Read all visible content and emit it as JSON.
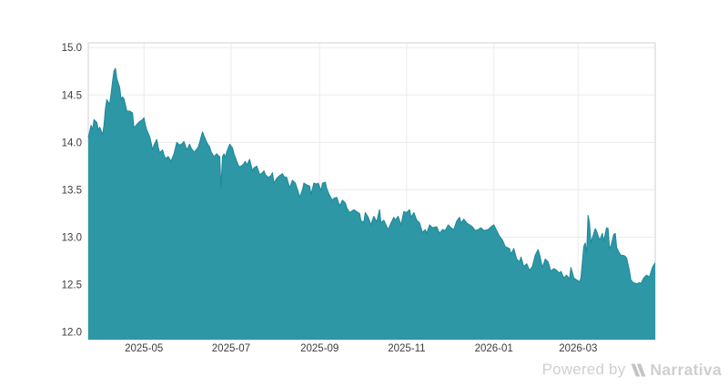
{
  "watermark": {
    "powered_by": "Powered by",
    "brand": "Narrativa"
  },
  "colors": {
    "area_fill": "#2e97a6",
    "area_line": "#1f8a9b",
    "grid": "#ebebeb",
    "plot_border": "#d9d9d9",
    "tick_text": "#3c3c3c",
    "watermark_text": "#cfcfcf",
    "watermark_logo": "#c4c4c4",
    "background": "#ffffff"
  },
  "chart_data": {
    "type": "area",
    "title": "",
    "xlabel": "",
    "ylabel": "",
    "grid": true,
    "legend": "none",
    "x_axis": {
      "range": [
        "2025-03-23",
        "2026-04-24"
      ],
      "ticks": [
        {
          "date": "2025-05-01",
          "label": "2025-05"
        },
        {
          "date": "2025-07-01",
          "label": "2025-07"
        },
        {
          "date": "2025-09-01",
          "label": "2025-09"
        },
        {
          "date": "2025-11-01",
          "label": "2025-11"
        },
        {
          "date": "2026-01-01",
          "label": "2026-01"
        },
        {
          "date": "2026-03-01",
          "label": "2026-03"
        }
      ]
    },
    "y_axis": {
      "range": [
        11.92,
        15.05
      ],
      "ticks": [
        {
          "value": 12.0,
          "label": "12.0"
        },
        {
          "value": 12.5,
          "label": "12.5"
        },
        {
          "value": 13.0,
          "label": "13.0"
        },
        {
          "value": 13.5,
          "label": "13.5"
        },
        {
          "value": 14.0,
          "label": "14.0"
        },
        {
          "value": 14.5,
          "label": "14.5"
        },
        {
          "value": 15.0,
          "label": "15.0"
        }
      ]
    },
    "series": [
      {
        "name": "value",
        "points": [
          [
            "2025-03-23",
            14.05
          ],
          [
            "2025-03-25",
            14.18
          ],
          [
            "2025-03-26",
            14.13
          ],
          [
            "2025-03-27",
            14.24
          ],
          [
            "2025-03-29",
            14.21
          ],
          [
            "2025-03-30",
            14.13
          ],
          [
            "2025-03-31",
            14.16
          ],
          [
            "2025-04-02",
            14.08
          ],
          [
            "2025-04-03",
            14.18
          ],
          [
            "2025-04-04",
            14.35
          ],
          [
            "2025-04-05",
            14.45
          ],
          [
            "2025-04-07",
            14.4
          ],
          [
            "2025-04-08",
            14.51
          ],
          [
            "2025-04-09",
            14.64
          ],
          [
            "2025-04-10",
            14.75
          ],
          [
            "2025-04-11",
            14.78
          ],
          [
            "2025-04-12",
            14.67
          ],
          [
            "2025-04-14",
            14.58
          ],
          [
            "2025-04-15",
            14.45
          ],
          [
            "2025-04-16",
            14.48
          ],
          [
            "2025-04-17",
            14.46
          ],
          [
            "2025-04-19",
            14.33
          ],
          [
            "2025-04-20",
            14.33
          ],
          [
            "2025-04-21",
            14.33
          ],
          [
            "2025-04-23",
            14.31
          ],
          [
            "2025-04-24",
            14.15
          ],
          [
            "2025-04-26",
            14.19
          ],
          [
            "2025-04-28",
            14.22
          ],
          [
            "2025-04-30",
            14.24
          ],
          [
            "2025-05-01",
            14.26
          ],
          [
            "2025-05-02",
            14.18
          ],
          [
            "2025-05-03",
            14.13
          ],
          [
            "2025-05-05",
            14.06
          ],
          [
            "2025-05-06",
            14.0
          ],
          [
            "2025-05-07",
            13.92
          ],
          [
            "2025-05-08",
            13.97
          ],
          [
            "2025-05-10",
            14.03
          ],
          [
            "2025-05-11",
            13.95
          ],
          [
            "2025-05-12",
            13.89
          ],
          [
            "2025-05-14",
            13.92
          ],
          [
            "2025-05-15",
            13.87
          ],
          [
            "2025-05-16",
            13.83
          ],
          [
            "2025-05-18",
            13.85
          ],
          [
            "2025-05-20",
            13.8
          ],
          [
            "2025-05-21",
            13.84
          ],
          [
            "2025-05-22",
            13.88
          ],
          [
            "2025-05-24",
            14.0
          ],
          [
            "2025-05-26",
            13.97
          ],
          [
            "2025-05-28",
            13.99
          ],
          [
            "2025-05-29",
            14.01
          ],
          [
            "2025-05-31",
            13.92
          ],
          [
            "2025-06-02",
            13.98
          ],
          [
            "2025-06-03",
            13.94
          ],
          [
            "2025-06-05",
            13.9
          ],
          [
            "2025-06-06",
            13.91
          ],
          [
            "2025-06-08",
            13.95
          ],
          [
            "2025-06-09",
            14.0
          ],
          [
            "2025-06-11",
            14.11
          ],
          [
            "2025-06-12",
            14.07
          ],
          [
            "2025-06-14",
            14.0
          ],
          [
            "2025-06-16",
            13.95
          ],
          [
            "2025-06-17",
            13.9
          ],
          [
            "2025-06-19",
            13.85
          ],
          [
            "2025-06-21",
            13.88
          ],
          [
            "2025-06-22",
            13.86
          ],
          [
            "2025-06-23",
            13.85
          ],
          [
            "2025-06-24",
            13.52
          ],
          [
            "2025-06-25",
            13.85
          ],
          [
            "2025-06-26",
            13.88
          ],
          [
            "2025-06-27",
            13.84
          ],
          [
            "2025-06-28",
            13.9
          ],
          [
            "2025-06-30",
            13.98
          ],
          [
            "2025-07-01",
            13.96
          ],
          [
            "2025-07-02",
            13.94
          ],
          [
            "2025-07-03",
            13.88
          ],
          [
            "2025-07-05",
            13.8
          ],
          [
            "2025-07-06",
            13.76
          ],
          [
            "2025-07-07",
            13.74
          ],
          [
            "2025-07-09",
            13.76
          ],
          [
            "2025-07-10",
            13.78
          ],
          [
            "2025-07-11",
            13.8
          ],
          [
            "2025-07-12",
            13.76
          ],
          [
            "2025-07-14",
            13.82
          ],
          [
            "2025-07-16",
            13.7
          ],
          [
            "2025-07-17",
            13.73
          ],
          [
            "2025-07-19",
            13.75
          ],
          [
            "2025-07-21",
            13.66
          ],
          [
            "2025-07-23",
            13.68
          ],
          [
            "2025-07-24",
            13.7
          ],
          [
            "2025-07-25",
            13.66
          ],
          [
            "2025-07-27",
            13.63
          ],
          [
            "2025-07-29",
            13.65
          ],
          [
            "2025-07-30",
            13.68
          ],
          [
            "2025-07-31",
            13.57
          ],
          [
            "2025-08-02",
            13.62
          ],
          [
            "2025-08-04",
            13.65
          ],
          [
            "2025-08-06",
            13.67
          ],
          [
            "2025-08-07",
            13.64
          ],
          [
            "2025-08-09",
            13.63
          ],
          [
            "2025-08-11",
            13.52
          ],
          [
            "2025-08-12",
            13.56
          ],
          [
            "2025-08-13",
            13.6
          ],
          [
            "2025-08-15",
            13.57
          ],
          [
            "2025-08-17",
            13.48
          ],
          [
            "2025-08-18",
            13.42
          ],
          [
            "2025-08-20",
            13.5
          ],
          [
            "2025-08-21",
            13.57
          ],
          [
            "2025-08-23",
            13.55
          ],
          [
            "2025-08-25",
            13.54
          ],
          [
            "2025-08-26",
            13.45
          ],
          [
            "2025-08-28",
            13.57
          ],
          [
            "2025-08-30",
            13.56
          ],
          [
            "2025-08-31",
            13.57
          ],
          [
            "2025-09-02",
            13.49
          ],
          [
            "2025-09-03",
            13.57
          ],
          [
            "2025-09-05",
            13.58
          ],
          [
            "2025-09-06",
            13.51
          ],
          [
            "2025-09-08",
            13.44
          ],
          [
            "2025-09-10",
            13.39
          ],
          [
            "2025-09-11",
            13.41
          ],
          [
            "2025-09-13",
            13.42
          ],
          [
            "2025-09-15",
            13.33
          ],
          [
            "2025-09-16",
            13.36
          ],
          [
            "2025-09-17",
            13.39
          ],
          [
            "2025-09-19",
            13.36
          ],
          [
            "2025-09-20",
            13.31
          ],
          [
            "2025-09-22",
            13.26
          ],
          [
            "2025-09-24",
            13.28
          ],
          [
            "2025-09-25",
            13.29
          ],
          [
            "2025-09-27",
            13.27
          ],
          [
            "2025-09-29",
            13.25
          ],
          [
            "2025-09-30",
            13.17
          ],
          [
            "2025-10-02",
            13.16
          ],
          [
            "2025-10-03",
            13.26
          ],
          [
            "2025-10-05",
            13.21
          ],
          [
            "2025-10-07",
            13.13
          ],
          [
            "2025-10-08",
            13.18
          ],
          [
            "2025-10-09",
            13.22
          ],
          [
            "2025-10-11",
            13.16
          ],
          [
            "2025-10-13",
            13.29
          ],
          [
            "2025-10-14",
            13.15
          ],
          [
            "2025-10-16",
            13.18
          ],
          [
            "2025-10-19",
            13.08
          ],
          [
            "2025-10-21",
            13.15
          ],
          [
            "2025-10-23",
            13.21
          ],
          [
            "2025-10-24",
            13.18
          ],
          [
            "2025-10-26",
            13.22
          ],
          [
            "2025-10-28",
            13.13
          ],
          [
            "2025-10-30",
            13.27
          ],
          [
            "2025-11-01",
            13.26
          ],
          [
            "2025-11-03",
            13.29
          ],
          [
            "2025-11-04",
            13.21
          ],
          [
            "2025-11-06",
            13.26
          ],
          [
            "2025-11-08",
            13.18
          ],
          [
            "2025-11-10",
            13.15
          ],
          [
            "2025-11-12",
            13.05
          ],
          [
            "2025-11-14",
            13.08
          ],
          [
            "2025-11-15",
            13.04
          ],
          [
            "2025-11-17",
            13.13
          ],
          [
            "2025-11-19",
            13.1
          ],
          [
            "2025-11-22",
            13.11
          ],
          [
            "2025-11-24",
            13.04
          ],
          [
            "2025-11-26",
            13.08
          ],
          [
            "2025-11-28",
            13.07
          ],
          [
            "2025-11-30",
            13.13
          ],
          [
            "2025-12-02",
            13.1
          ],
          [
            "2025-12-04",
            13.08
          ],
          [
            "2025-12-06",
            13.17
          ],
          [
            "2025-12-08",
            13.21
          ],
          [
            "2025-12-09",
            13.15
          ],
          [
            "2025-12-11",
            13.19
          ],
          [
            "2025-12-13",
            13.15
          ],
          [
            "2025-12-15",
            13.13
          ],
          [
            "2025-12-17",
            13.11
          ],
          [
            "2025-12-19",
            13.07
          ],
          [
            "2025-12-21",
            13.08
          ],
          [
            "2025-12-23",
            13.1
          ],
          [
            "2025-12-25",
            13.07
          ],
          [
            "2025-12-28",
            13.08
          ],
          [
            "2025-12-30",
            13.11
          ],
          [
            "2026-01-01",
            13.13
          ],
          [
            "2026-01-03",
            13.07
          ],
          [
            "2026-01-05",
            13.01
          ],
          [
            "2026-01-07",
            12.97
          ],
          [
            "2026-01-09",
            12.9
          ],
          [
            "2026-01-12",
            12.88
          ],
          [
            "2026-01-13",
            12.82
          ],
          [
            "2026-01-15",
            12.88
          ],
          [
            "2026-01-17",
            12.77
          ],
          [
            "2026-01-19",
            12.74
          ],
          [
            "2026-01-20",
            12.79
          ],
          [
            "2026-01-22",
            12.69
          ],
          [
            "2026-01-24",
            12.72
          ],
          [
            "2026-01-26",
            12.65
          ],
          [
            "2026-01-28",
            12.69
          ],
          [
            "2026-01-30",
            12.81
          ],
          [
            "2026-02-01",
            12.87
          ],
          [
            "2026-02-02",
            12.82
          ],
          [
            "2026-02-04",
            12.68
          ],
          [
            "2026-02-06",
            12.77
          ],
          [
            "2026-02-08",
            12.74
          ],
          [
            "2026-02-10",
            12.64
          ],
          [
            "2026-02-12",
            12.67
          ],
          [
            "2026-02-14",
            12.65
          ],
          [
            "2026-02-16",
            12.62
          ],
          [
            "2026-02-17",
            12.64
          ],
          [
            "2026-02-19",
            12.57
          ],
          [
            "2026-02-21",
            12.6
          ],
          [
            "2026-02-23",
            12.56
          ],
          [
            "2026-02-24",
            12.68
          ],
          [
            "2026-02-26",
            12.57
          ],
          [
            "2026-02-28",
            12.55
          ],
          [
            "2026-03-02",
            12.53
          ],
          [
            "2026-03-03",
            12.57
          ],
          [
            "2026-03-05",
            12.9
          ],
          [
            "2026-03-06",
            12.94
          ],
          [
            "2026-03-07",
            12.83
          ],
          [
            "2026-03-08",
            13.23
          ],
          [
            "2026-03-09",
            13.15
          ],
          [
            "2026-03-10",
            12.94
          ],
          [
            "2026-03-12",
            13.04
          ],
          [
            "2026-03-13",
            13.09
          ],
          [
            "2026-03-14",
            13.06
          ],
          [
            "2026-03-16",
            12.97
          ],
          [
            "2026-03-17",
            13.0
          ],
          [
            "2026-03-18",
            13.04
          ],
          [
            "2026-03-19",
            12.96
          ],
          [
            "2026-03-21",
            13.1
          ],
          [
            "2026-03-22",
            13.09
          ],
          [
            "2026-03-23",
            12.88
          ],
          [
            "2026-03-24",
            12.91
          ],
          [
            "2026-03-26",
            13.03
          ],
          [
            "2026-03-27",
            13.04
          ],
          [
            "2026-03-28",
            12.89
          ],
          [
            "2026-03-30",
            12.83
          ],
          [
            "2026-03-31",
            12.81
          ],
          [
            "2026-04-01",
            12.81
          ],
          [
            "2026-04-03",
            12.8
          ],
          [
            "2026-04-04",
            12.78
          ],
          [
            "2026-04-06",
            12.64
          ],
          [
            "2026-04-07",
            12.55
          ],
          [
            "2026-04-08",
            12.53
          ],
          [
            "2026-04-09",
            12.52
          ],
          [
            "2026-04-11",
            12.51
          ],
          [
            "2026-04-13",
            12.52
          ],
          [
            "2026-04-14",
            12.51
          ],
          [
            "2026-04-16",
            12.57
          ],
          [
            "2026-04-18",
            12.6
          ],
          [
            "2026-04-20",
            12.58
          ],
          [
            "2026-04-22",
            12.68
          ],
          [
            "2026-04-24",
            12.73
          ]
        ]
      }
    ]
  }
}
